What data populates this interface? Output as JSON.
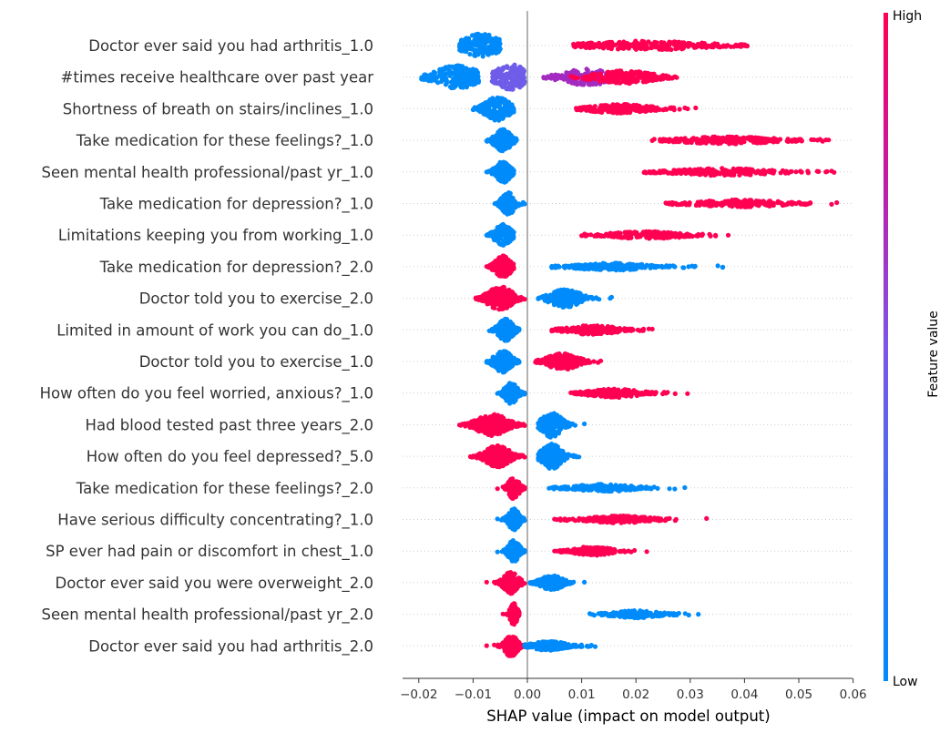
{
  "chart_data": {
    "type": "scatter",
    "subtype": "shap-beeswarm",
    "xlabel": "SHAP value (impact on model output)",
    "xticks": [
      "−0.02",
      "−0.01",
      "0.00",
      "0.01",
      "0.02",
      "0.03",
      "0.04",
      "0.05",
      "0.06"
    ],
    "xtick_values": [
      -0.02,
      -0.01,
      0.0,
      0.01,
      0.02,
      0.03,
      0.04,
      0.05,
      0.06
    ],
    "xlim": [
      -0.023,
      0.061
    ],
    "colorbar": {
      "label": "Feature value",
      "high": "High",
      "low": "Low",
      "low_color": "#008bfb",
      "high_color": "#ff0052"
    },
    "zero_line_color": "#999999",
    "features": [
      {
        "name": "Doctor ever said you had arthritis_1.0",
        "groups": [
          {
            "color": "low",
            "min": -0.0125,
            "max": -0.005,
            "center": -0.0085,
            "width": 0.003,
            "n": 220,
            "height": 13
          },
          {
            "color": "high",
            "min": 0.0085,
            "max": 0.0405,
            "center": 0.022,
            "width": 0.01,
            "n": 240,
            "height": 5
          }
        ]
      },
      {
        "name": "#times receive healthcare over past year",
        "groups": [
          {
            "color": "low",
            "min": -0.0195,
            "max": -0.009,
            "center": -0.013,
            "width": 0.0035,
            "n": 200,
            "height": 13
          },
          {
            "color": "mid",
            "min": -0.0065,
            "max": -0.0005,
            "center": -0.003,
            "width": 0.0025,
            "n": 160,
            "height": 14
          },
          {
            "color": "midhigh",
            "min": 0.003,
            "max": 0.016,
            "center": 0.011,
            "width": 0.004,
            "n": 160,
            "height": 9
          },
          {
            "color": "high",
            "min": 0.008,
            "max": 0.0275,
            "center": 0.018,
            "width": 0.005,
            "n": 200,
            "height": 7
          }
        ]
      },
      {
        "name": "Shortness of breath on stairs/inclines_1.0",
        "groups": [
          {
            "color": "low",
            "min": -0.01,
            "max": -0.0025,
            "center": -0.0055,
            "width": 0.002,
            "n": 200,
            "height": 13
          },
          {
            "color": "high",
            "min": 0.009,
            "max": 0.031,
            "center": 0.017,
            "width": 0.005,
            "n": 200,
            "height": 5
          }
        ]
      },
      {
        "name": "Take medication for these feelings?_1.0",
        "groups": [
          {
            "color": "low",
            "min": -0.0075,
            "max": -0.002,
            "center": -0.0045,
            "width": 0.0013,
            "n": 170,
            "height": 12
          },
          {
            "color": "high",
            "min": 0.023,
            "max": 0.0555,
            "center": 0.037,
            "width": 0.008,
            "n": 200,
            "height": 4
          }
        ]
      },
      {
        "name": "Seen mental health professional/past yr_1.0",
        "groups": [
          {
            "color": "low",
            "min": -0.0075,
            "max": -0.0025,
            "center": -0.0045,
            "width": 0.0012,
            "n": 170,
            "height": 12
          },
          {
            "color": "high",
            "min": 0.0215,
            "max": 0.0565,
            "center": 0.036,
            "width": 0.008,
            "n": 200,
            "height": 4
          }
        ]
      },
      {
        "name": "Take medication for depression?_1.0",
        "groups": [
          {
            "color": "low",
            "min": -0.006,
            "max": -0.0005,
            "center": -0.0035,
            "width": 0.0011,
            "n": 160,
            "height": 12
          },
          {
            "color": "high",
            "min": 0.0255,
            "max": 0.057,
            "center": 0.039,
            "width": 0.007,
            "n": 200,
            "height": 4
          }
        ]
      },
      {
        "name": "Limitations keeping you from working_1.0",
        "groups": [
          {
            "color": "low",
            "min": -0.0075,
            "max": -0.0025,
            "center": -0.0045,
            "width": 0.0013,
            "n": 170,
            "height": 12
          },
          {
            "color": "high",
            "min": 0.01,
            "max": 0.037,
            "center": 0.022,
            "width": 0.006,
            "n": 200,
            "height": 4
          }
        ]
      },
      {
        "name": "Take medication for depression?_2.0",
        "groups": [
          {
            "color": "high",
            "min": -0.0075,
            "max": -0.0025,
            "center": -0.0045,
            "width": 0.0013,
            "n": 170,
            "height": 12
          },
          {
            "color": "low",
            "min": 0.0045,
            "max": 0.036,
            "center": 0.016,
            "width": 0.006,
            "n": 200,
            "height": 4
          }
        ]
      },
      {
        "name": "Doctor told you to exercise_2.0",
        "groups": [
          {
            "color": "high",
            "min": -0.0095,
            "max": -0.0005,
            "center": -0.005,
            "width": 0.002,
            "n": 220,
            "height": 13
          },
          {
            "color": "low",
            "min": 0.002,
            "max": 0.0155,
            "center": 0.007,
            "width": 0.0025,
            "n": 200,
            "height": 10
          }
        ]
      },
      {
        "name": "Limited in amount of work you can do_1.0",
        "groups": [
          {
            "color": "low",
            "min": -0.007,
            "max": -0.0015,
            "center": -0.004,
            "width": 0.0012,
            "n": 160,
            "height": 12
          },
          {
            "color": "high",
            "min": 0.0045,
            "max": 0.023,
            "center": 0.012,
            "width": 0.004,
            "n": 200,
            "height": 5
          }
        ]
      },
      {
        "name": "Doctor told you to exercise_1.0",
        "groups": [
          {
            "color": "low",
            "min": -0.0075,
            "max": -0.0015,
            "center": -0.0045,
            "width": 0.0014,
            "n": 170,
            "height": 12
          },
          {
            "color": "high",
            "min": 0.0015,
            "max": 0.0135,
            "center": 0.0065,
            "width": 0.0025,
            "n": 190,
            "height": 9
          }
        ]
      },
      {
        "name": "How often do you feel worried, anxious?_1.0",
        "groups": [
          {
            "color": "low",
            "min": -0.0055,
            "max": -0.0005,
            "center": -0.003,
            "width": 0.001,
            "n": 150,
            "height": 12
          },
          {
            "color": "high",
            "min": 0.008,
            "max": 0.0295,
            "center": 0.016,
            "width": 0.004,
            "n": 190,
            "height": 5
          }
        ]
      },
      {
        "name": "Had blood tested past three years_2.0",
        "groups": [
          {
            "color": "high",
            "min": -0.0125,
            "max": -0.0005,
            "center": -0.0065,
            "width": 0.0025,
            "n": 220,
            "height": 12
          },
          {
            "color": "low",
            "min": 0.002,
            "max": 0.0105,
            "center": 0.0045,
            "width": 0.0016,
            "n": 200,
            "height": 14
          }
        ]
      },
      {
        "name": "How often do you feel depressed?_5.0",
        "groups": [
          {
            "color": "high",
            "min": -0.0105,
            "max": -0.0005,
            "center": -0.0055,
            "width": 0.002,
            "n": 210,
            "height": 12
          },
          {
            "color": "low",
            "min": 0.002,
            "max": 0.0095,
            "center": 0.0045,
            "width": 0.0016,
            "n": 200,
            "height": 14
          }
        ]
      },
      {
        "name": "Take medication for these feelings?_2.0",
        "groups": [
          {
            "color": "high",
            "min": -0.0055,
            "max": -0.0005,
            "center": -0.0025,
            "width": 0.0009,
            "n": 150,
            "height": 12
          },
          {
            "color": "low",
            "min": 0.004,
            "max": 0.029,
            "center": 0.014,
            "width": 0.005,
            "n": 190,
            "height": 4
          }
        ]
      },
      {
        "name": "Have serious difficulty concentrating?_1.0",
        "groups": [
          {
            "color": "low",
            "min": -0.0055,
            "max": -0.0005,
            "center": -0.0025,
            "width": 0.0009,
            "n": 150,
            "height": 12
          },
          {
            "color": "high",
            "min": 0.005,
            "max": 0.033,
            "center": 0.017,
            "width": 0.005,
            "n": 190,
            "height": 4
          }
        ]
      },
      {
        "name": "SP ever had pain or discomfort in chest_1.0",
        "groups": [
          {
            "color": "low",
            "min": -0.0055,
            "max": -0.0005,
            "center": -0.0025,
            "width": 0.0009,
            "n": 150,
            "height": 12
          },
          {
            "color": "high",
            "min": 0.005,
            "max": 0.022,
            "center": 0.012,
            "width": 0.003,
            "n": 180,
            "height": 5
          }
        ]
      },
      {
        "name": "Doctor ever said you were overweight_2.0",
        "groups": [
          {
            "color": "high",
            "min": -0.0075,
            "max": -0.0005,
            "center": -0.003,
            "width": 0.0012,
            "n": 160,
            "height": 12
          },
          {
            "color": "low",
            "min": 0.0005,
            "max": 0.0105,
            "center": 0.0045,
            "width": 0.0018,
            "n": 190,
            "height": 8
          }
        ]
      },
      {
        "name": "Seen mental health professional/past yr_2.0",
        "groups": [
          {
            "color": "high",
            "min": -0.0045,
            "max": -0.0015,
            "center": -0.0025,
            "width": 0.0006,
            "n": 130,
            "height": 12
          },
          {
            "color": "low",
            "min": 0.0115,
            "max": 0.0315,
            "center": 0.02,
            "width": 0.004,
            "n": 180,
            "height": 4
          }
        ]
      },
      {
        "name": "Doctor ever said you had arthritis_2.0",
        "groups": [
          {
            "color": "high",
            "min": -0.0075,
            "max": -0.0005,
            "center": -0.003,
            "width": 0.001,
            "n": 160,
            "height": 12
          },
          {
            "color": "low",
            "min": -0.0005,
            "max": 0.0125,
            "center": 0.004,
            "width": 0.0028,
            "n": 200,
            "height": 5
          }
        ]
      }
    ]
  }
}
